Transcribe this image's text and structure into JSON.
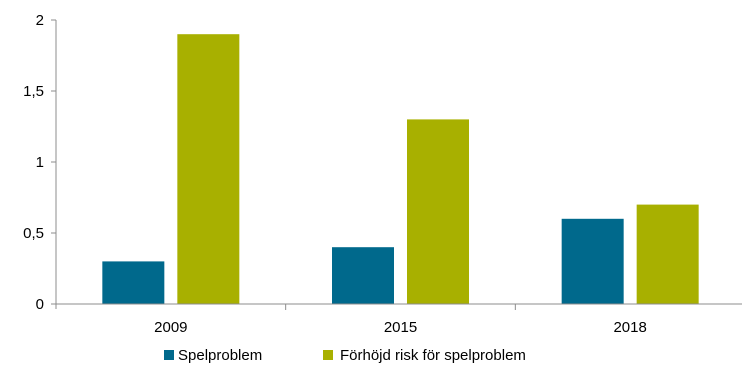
{
  "chart_data": {
    "type": "bar",
    "categories": [
      "2009",
      "2015",
      "2018"
    ],
    "series": [
      {
        "name": "Spelproblem",
        "values": [
          0.3,
          0.4,
          0.6
        ],
        "color": "#00698c"
      },
      {
        "name": "Förhöjd risk för spelproblem",
        "values": [
          1.9,
          1.3,
          0.7
        ],
        "color": "#a8b000"
      }
    ],
    "ylim": [
      0,
      2
    ],
    "yticks": [
      0,
      0.5,
      1,
      1.5,
      2
    ],
    "ytick_labels": [
      "0",
      "0,5",
      "1",
      "1,5",
      "2"
    ],
    "grid": false,
    "legend": "bottom"
  }
}
